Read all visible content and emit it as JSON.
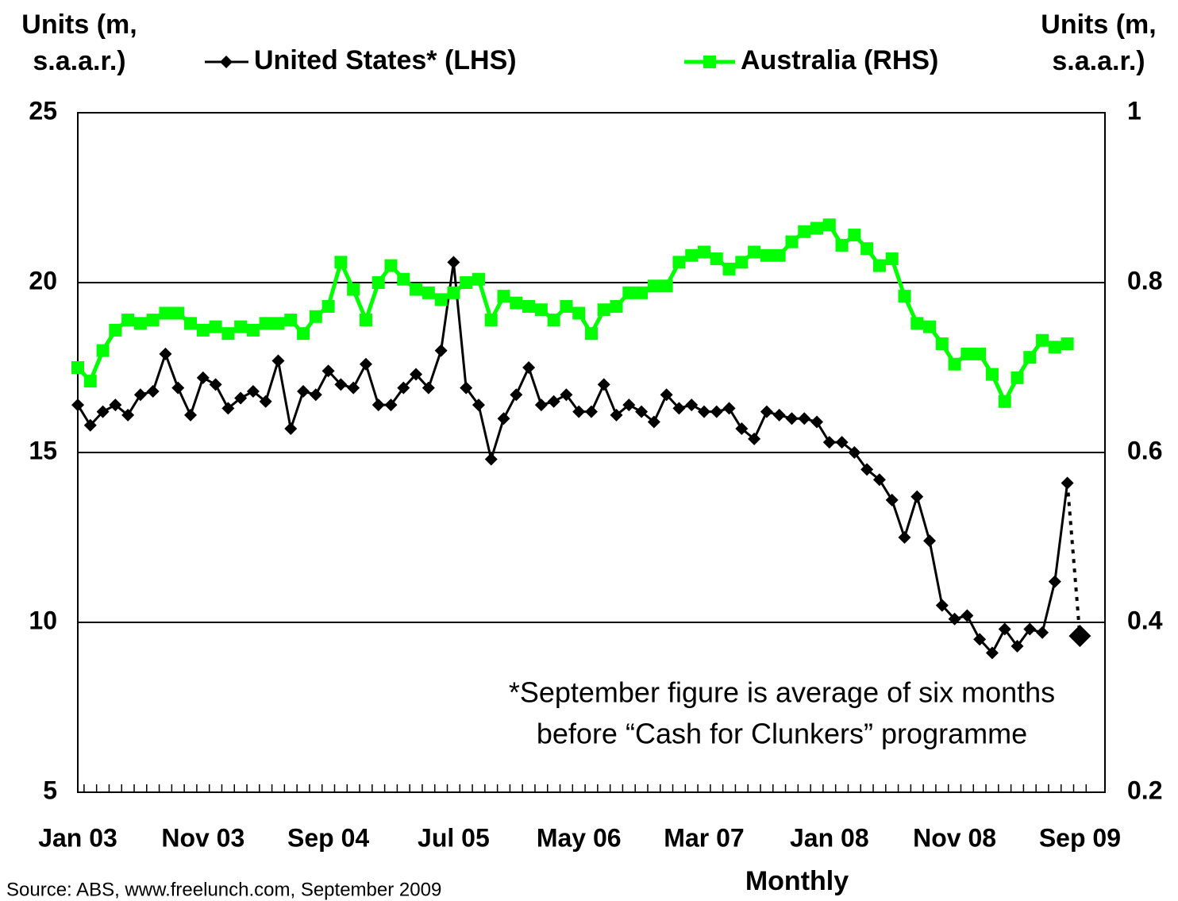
{
  "chart_data": {
    "type": "line",
    "y_label": "Units (m, s.a.a.r.)",
    "y2_label": "Units (m, s.a.a.r.)",
    "x_label": "Monthly",
    "source": "Source:  ABS, www.freelunch.com, September 2009",
    "annotation": [
      "*September figure is average of six months",
      "before “Cash for Clunkers” programme"
    ],
    "categories": [
      "Jan 03",
      null,
      null,
      null,
      null,
      null,
      null,
      null,
      null,
      null,
      "Nov 03",
      null,
      null,
      null,
      null,
      null,
      null,
      null,
      null,
      null,
      "Sep 04",
      null,
      null,
      null,
      null,
      null,
      null,
      null,
      null,
      null,
      "Jul 05",
      null,
      null,
      null,
      null,
      null,
      null,
      null,
      null,
      null,
      "May 06",
      null,
      null,
      null,
      null,
      null,
      null,
      null,
      null,
      null,
      "Mar 07",
      null,
      null,
      null,
      null,
      null,
      null,
      null,
      null,
      null,
      "Jan 08",
      null,
      null,
      null,
      null,
      null,
      null,
      null,
      null,
      null,
      "Nov 08",
      null,
      null,
      null,
      null,
      null,
      null,
      null,
      null,
      null,
      "Sep 09"
    ],
    "series": [
      {
        "name": "United States* (LHS)",
        "color": "#000000",
        "marker": "diamond",
        "axis": "y",
        "last_point_separate": true,
        "values": [
          16.4,
          15.8,
          16.2,
          16.4,
          16.1,
          16.7,
          16.8,
          17.9,
          16.9,
          16.1,
          17.2,
          17.0,
          16.3,
          16.6,
          16.8,
          16.5,
          17.7,
          15.7,
          16.8,
          16.7,
          17.4,
          17.0,
          16.9,
          17.6,
          16.4,
          16.4,
          16.9,
          17.3,
          16.9,
          18.0,
          20.6,
          16.9,
          16.4,
          14.8,
          16.0,
          16.7,
          17.5,
          16.4,
          16.5,
          16.7,
          16.2,
          16.2,
          17.0,
          16.1,
          16.4,
          16.2,
          15.9,
          16.7,
          16.3,
          16.4,
          16.2,
          16.2,
          16.3,
          15.7,
          15.4,
          16.2,
          16.1,
          16.0,
          16.0,
          15.9,
          15.3,
          15.3,
          15.0,
          14.5,
          14.2,
          13.6,
          12.5,
          13.7,
          12.4,
          10.5,
          10.1,
          10.2,
          9.5,
          9.1,
          9.8,
          9.3,
          9.8,
          9.7,
          11.2,
          14.1,
          9.6
        ]
      },
      {
        "name": "Australia (RHS)",
        "color": "#00ff00",
        "marker": "square",
        "axis": "y2",
        "values": [
          0.7,
          0.684,
          0.72,
          0.744,
          0.756,
          0.752,
          0.756,
          0.764,
          0.764,
          0.752,
          0.744,
          0.748,
          0.74,
          0.748,
          0.744,
          0.752,
          0.752,
          0.756,
          0.74,
          0.76,
          0.772,
          0.824,
          0.792,
          0.756,
          0.8,
          0.82,
          0.804,
          0.792,
          0.788,
          0.78,
          0.788,
          0.8,
          0.804,
          0.756,
          0.784,
          0.776,
          0.772,
          0.768,
          0.756,
          0.772,
          0.764,
          0.74,
          0.768,
          0.772,
          0.788,
          0.788,
          0.796,
          0.796,
          0.824,
          0.832,
          0.836,
          0.828,
          0.816,
          0.824,
          0.836,
          0.832,
          0.832,
          0.848,
          0.86,
          0.864,
          0.868,
          0.844,
          0.856,
          0.84,
          0.82,
          0.828,
          0.784,
          0.752,
          0.748,
          0.728,
          0.704,
          0.716,
          0.716,
          0.692,
          0.66,
          0.688,
          0.712,
          0.732,
          0.724,
          0.728,
          null
        ]
      }
    ],
    "ylim": [
      5,
      25
    ],
    "yticks": [
      5,
      10,
      15,
      20,
      25
    ],
    "y2lim": [
      0.2,
      1
    ],
    "y2ticks": [
      0.2,
      0.4,
      0.6,
      0.8,
      1
    ],
    "grid": true
  }
}
